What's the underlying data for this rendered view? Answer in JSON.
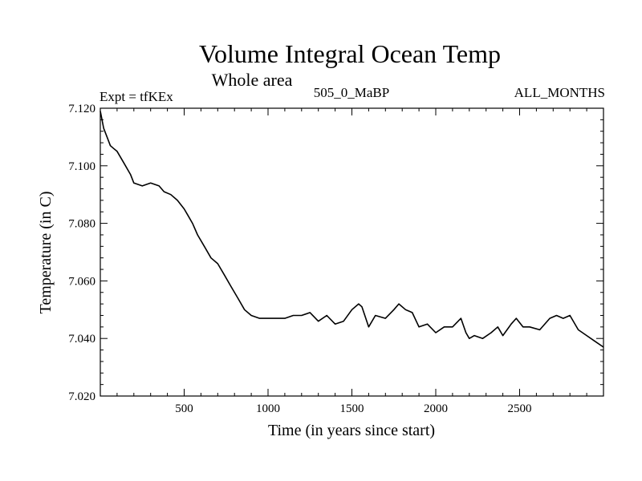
{
  "chart_data": {
    "type": "line",
    "title": "Volume Integral Ocean Temp",
    "subtitle": "Whole area",
    "left_label": "Expt = tfKEx",
    "center_label": "505_0_MaBP",
    "right_label": "ALL_MONTHS",
    "xlabel": "Time (in years since start)",
    "ylabel": "Temperature (in C)",
    "xlim": [
      0,
      3000
    ],
    "ylim": [
      7.02,
      7.12
    ],
    "x_ticks": [
      "500",
      "1000",
      "1500",
      "2000",
      "2500"
    ],
    "y_ticks": [
      "7.020",
      "7.040",
      "7.060",
      "7.080",
      "7.100",
      "7.120"
    ],
    "grid": false,
    "line_color": "#000000",
    "series": [
      {
        "x": [
          0,
          20,
          40,
          60,
          80,
          100,
          140,
          180,
          200,
          250,
          300,
          350,
          380,
          420,
          460,
          500,
          520,
          550,
          580,
          620,
          660,
          700,
          740,
          780,
          820,
          860,
          900,
          950,
          1000,
          1050,
          1100,
          1150,
          1200,
          1250,
          1300,
          1350,
          1400,
          1450,
          1500,
          1540,
          1560,
          1600,
          1640,
          1700,
          1750,
          1780,
          1820,
          1860,
          1900,
          1950,
          2000,
          2050,
          2100,
          2150,
          2180,
          2200,
          2230,
          2280,
          2330,
          2370,
          2400,
          2450,
          2480,
          2520,
          2560,
          2620,
          2680,
          2720,
          2760,
          2800,
          2850,
          2900,
          2950,
          3000
        ],
        "values": [
          7.119,
          7.113,
          7.11,
          7.107,
          7.106,
          7.105,
          7.101,
          7.097,
          7.094,
          7.093,
          7.094,
          7.093,
          7.091,
          7.09,
          7.088,
          7.085,
          7.083,
          7.08,
          7.076,
          7.072,
          7.068,
          7.066,
          7.062,
          7.058,
          7.054,
          7.05,
          7.048,
          7.047,
          7.047,
          7.047,
          7.047,
          7.048,
          7.048,
          7.049,
          7.046,
          7.048,
          7.045,
          7.046,
          7.05,
          7.052,
          7.051,
          7.044,
          7.048,
          7.047,
          7.05,
          7.052,
          7.05,
          7.049,
          7.044,
          7.045,
          7.042,
          7.044,
          7.044,
          7.047,
          7.042,
          7.04,
          7.041,
          7.04,
          7.042,
          7.044,
          7.041,
          7.045,
          7.047,
          7.044,
          7.044,
          7.043,
          7.047,
          7.048,
          7.047,
          7.048,
          7.043,
          7.041,
          7.039,
          7.037
        ]
      }
    ]
  }
}
